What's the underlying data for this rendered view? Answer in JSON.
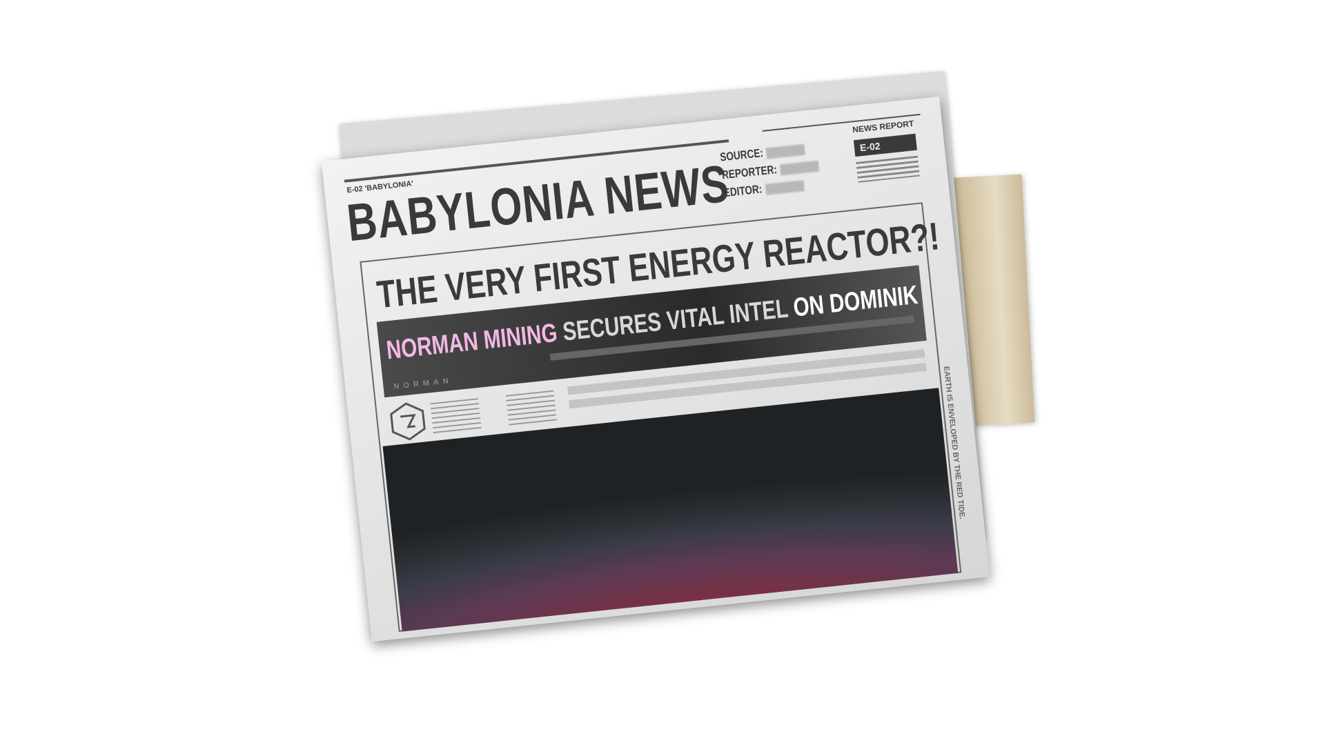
{
  "header": {
    "edition": "E-02 'BABYLONIA'",
    "title": "BABYLONIA NEWS",
    "label": "NEWS REPORT",
    "badge": "E-02",
    "fields": [
      "SOURCE:",
      "REPORTER:",
      "EDITOR:"
    ]
  },
  "headline": "THE VERY FIRST ENERGY REACTOR?!",
  "subhead": {
    "highlight": "NORMAN MINING",
    "middle": "SECURES VITAL INTEL",
    "end": "ON DOMINIK"
  },
  "brand": "NORMAN",
  "side_text": "EARTH IS ENVELOPED BY THE RED TIDE."
}
